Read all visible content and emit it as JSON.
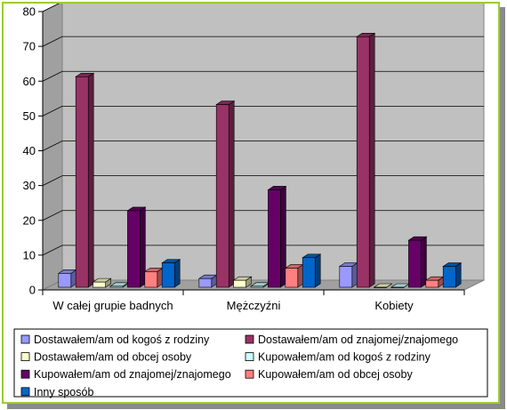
{
  "chart_data": {
    "type": "bar",
    "title": "",
    "xlabel": "",
    "ylabel": "",
    "ylim": [
      0,
      80
    ],
    "yticks": [
      0,
      10,
      20,
      30,
      40,
      50,
      60,
      70,
      80
    ],
    "grid": true,
    "style": "3d-clustered",
    "legend_position": "bottom",
    "categories": [
      "W całej grupie badnych",
      "Mężczyźni",
      "Kobiety"
    ],
    "series": [
      {
        "name": "Dostawałem/am od kogoś z rodziny",
        "color": "#9999ff",
        "values": [
          4,
          2.5,
          6
        ]
      },
      {
        "name": "Dostawałem/am od znajomej/znajomego",
        "color": "#993366",
        "values": [
          60.5,
          52.5,
          72
        ]
      },
      {
        "name": "Dostawałem/am od obcej osoby",
        "color": "#ffffcc",
        "values": [
          1.5,
          2,
          0
        ]
      },
      {
        "name": "Kupowałem/am od kogoś z rodziny",
        "color": "#ccffff",
        "values": [
          0.3,
          0.3,
          0
        ]
      },
      {
        "name": "Kupowałem/am od znajomej/znajomego",
        "color": "#660066",
        "values": [
          22,
          28,
          13.5
        ]
      },
      {
        "name": "Kupowałem/am od obcej osoby",
        "color": "#ff8080",
        "values": [
          4.5,
          5.5,
          2
        ]
      },
      {
        "name": "Inny sposób",
        "color": "#0066cc",
        "values": [
          7,
          8.5,
          6
        ]
      }
    ]
  }
}
